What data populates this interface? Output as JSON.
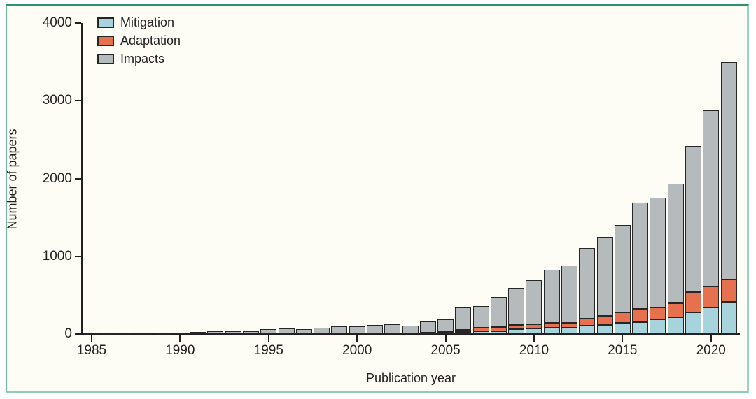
{
  "figure": {
    "xlabel": "Publication year",
    "ylabel": "Number of papers"
  },
  "chart_data": {
    "type": "bar",
    "stacked": true,
    "title": "",
    "xlabel": "Publication year",
    "ylabel": "Number of papers",
    "ylim": [
      0,
      4000
    ],
    "yticks": [
      0,
      1000,
      2000,
      3000,
      4000
    ],
    "xticks": [
      1985,
      1990,
      1995,
      2000,
      2005,
      2010,
      2015,
      2020
    ],
    "grid": false,
    "legend_position": "top-left",
    "bar_outline_color": "#262626",
    "categories": [
      1985,
      1986,
      1987,
      1988,
      1989,
      1990,
      1991,
      1992,
      1993,
      1994,
      1995,
      1996,
      1997,
      1998,
      1999,
      2000,
      2001,
      2002,
      2003,
      2004,
      2005,
      2006,
      2007,
      2008,
      2009,
      2010,
      2011,
      2012,
      2013,
      2014,
      2015,
      2016,
      2017,
      2018,
      2019,
      2020,
      2021
    ],
    "series": [
      {
        "name": "Mitigation",
        "color": "#a7d3dd",
        "values": [
          0,
          0,
          0,
          0,
          0,
          0,
          0,
          0,
          0,
          0,
          0,
          0,
          0,
          0,
          0,
          0,
          0,
          0,
          0,
          10,
          20,
          30,
          35,
          40,
          60,
          70,
          80,
          80,
          110,
          120,
          140,
          155,
          190,
          220,
          280,
          340,
          410
        ]
      },
      {
        "name": "Adaptation",
        "color": "#e5714f",
        "values": [
          0,
          0,
          0,
          0,
          0,
          0,
          0,
          0,
          0,
          0,
          0,
          0,
          0,
          0,
          0,
          0,
          0,
          0,
          0,
          5,
          10,
          25,
          45,
          50,
          55,
          60,
          60,
          65,
          90,
          110,
          135,
          170,
          155,
          180,
          260,
          275,
          290
        ]
      },
      {
        "name": "Impacts",
        "color": "#b5babd",
        "values": [
          5,
          8,
          8,
          5,
          5,
          15,
          30,
          32,
          32,
          38,
          60,
          70,
          65,
          85,
          100,
          100,
          120,
          130,
          110,
          150,
          160,
          290,
          280,
          390,
          475,
          565,
          690,
          740,
          910,
          1015,
          1125,
          1365,
          1410,
          1530,
          1880,
          2265,
          2800
        ]
      }
    ]
  }
}
